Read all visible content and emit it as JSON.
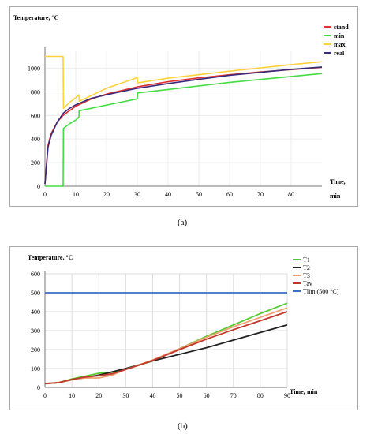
{
  "caption_a": "(a)",
  "caption_b": "(b)",
  "chart_data": [
    {
      "type": "line",
      "ylabel": "Temperature, °C",
      "xlabel": "Time, min",
      "xlim": [
        0,
        90
      ],
      "ylim": [
        0,
        1150
      ],
      "xticks": [
        0,
        10,
        20,
        30,
        40,
        50,
        60,
        70,
        80
      ],
      "yticks": [
        0,
        200,
        400,
        600,
        800,
        1000
      ],
      "grid": true,
      "legend_position": "top-right",
      "series": [
        {
          "name": "stand",
          "color": "#e03030",
          "x": [
            0,
            1,
            2,
            4,
            6,
            10,
            15,
            20,
            30,
            40,
            50,
            60,
            70,
            80,
            90
          ],
          "y": [
            20,
            349,
            445,
            544,
            603,
            678,
            739,
            781,
            842,
            885,
            918,
            945,
            968,
            988,
            1006
          ]
        },
        {
          "name": "min",
          "color": "#44dd44",
          "x": [
            0,
            5.9,
            6,
            8,
            10,
            11,
            11.1,
            30,
            30.1,
            40,
            60,
            80,
            90
          ],
          "y": [
            0,
            0,
            490,
            530,
            560,
            585,
            640,
            740,
            790,
            820,
            880,
            930,
            955
          ]
        },
        {
          "name": "max",
          "color": "#ffd23a",
          "x": [
            0,
            5.9,
            6,
            8,
            10,
            11,
            11.1,
            20,
            30,
            30.1,
            40,
            60,
            80,
            90
          ],
          "y": [
            1100,
            1100,
            660,
            710,
            750,
            775,
            720,
            830,
            920,
            875,
            915,
            975,
            1030,
            1055
          ]
        },
        {
          "name": "real",
          "color": "#3a2a7a",
          "x": [
            0,
            1,
            2,
            4,
            6,
            8,
            10,
            15,
            20,
            30,
            40,
            50,
            60,
            70,
            80,
            90
          ],
          "y": [
            20,
            330,
            430,
            545,
            620,
            660,
            690,
            745,
            775,
            830,
            870,
            905,
            940,
            965,
            990,
            1010
          ]
        }
      ]
    },
    {
      "type": "line",
      "ylabel": "Temperature, °C",
      "xlabel": "Time, min",
      "xlim": [
        0,
        90
      ],
      "ylim": [
        0,
        600
      ],
      "xticks": [
        0,
        10,
        20,
        30,
        40,
        50,
        60,
        70,
        80,
        90
      ],
      "yticks": [
        0,
        100,
        200,
        300,
        400,
        500,
        600
      ],
      "grid": true,
      "legend_position": "top-right",
      "series": [
        {
          "name": "T1",
          "color": "#55cc33",
          "x": [
            0,
            5,
            10,
            15,
            20,
            25,
            30,
            35,
            40,
            50,
            60,
            70,
            80,
            90
          ],
          "y": [
            20,
            25,
            45,
            60,
            75,
            80,
            95,
            118,
            140,
            205,
            270,
            330,
            390,
            445
          ]
        },
        {
          "name": "T2",
          "color": "#222222",
          "x": [
            0,
            5,
            10,
            20,
            30,
            40,
            50,
            60,
            70,
            80,
            90
          ],
          "y": [
            20,
            25,
            40,
            65,
            100,
            140,
            175,
            210,
            250,
            290,
            330
          ]
        },
        {
          "name": "T3",
          "color": "#f0a070",
          "x": [
            0,
            5,
            10,
            15,
            20,
            25,
            30,
            35,
            40,
            50,
            60,
            70,
            80,
            90
          ],
          "y": [
            20,
            25,
            40,
            50,
            50,
            65,
            95,
            120,
            145,
            205,
            265,
            320,
            370,
            420
          ]
        },
        {
          "name": "Tav",
          "color": "#c0392b",
          "x": [
            0,
            5,
            10,
            15,
            20,
            25,
            30,
            35,
            40,
            50,
            60,
            70,
            80,
            90
          ],
          "y": [
            20,
            25,
            42,
            55,
            62,
            72,
            95,
            118,
            142,
            200,
            255,
            305,
            352,
            400
          ]
        },
        {
          "name": "Tlim (500 °C)",
          "color": "#3a6fc4",
          "x": [
            0,
            90
          ],
          "y": [
            500,
            500
          ]
        }
      ]
    }
  ]
}
